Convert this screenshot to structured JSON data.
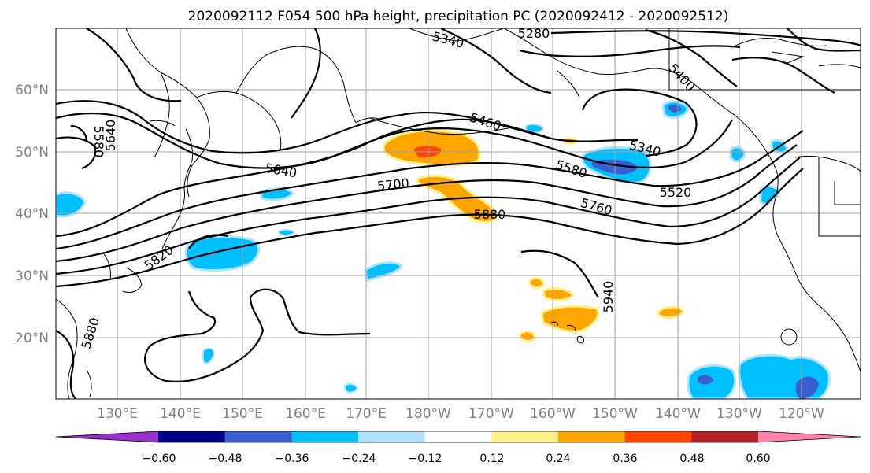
{
  "title": "2020092112 F054 500 hPa height, precipitation PC (2020092412 - 2020092512)",
  "map": {
    "lat_labels": [
      "60°N",
      "50°N",
      "40°N",
      "30°N",
      "20°N"
    ],
    "lon_labels": [
      "130°E",
      "140°E",
      "150°E",
      "160°E",
      "170°E",
      "180°W",
      "170°W",
      "160°W",
      "150°W",
      "140°W",
      "130°W",
      "120°W"
    ],
    "contour_labels": [
      "5280",
      "5340",
      "5400",
      "5460",
      "5340",
      "5580",
      "5640",
      "5640",
      "5580",
      "5700",
      "5520",
      "5760",
      "5880",
      "5820",
      "5940",
      "5880"
    ]
  },
  "colorbar": {
    "ticks": [
      "−0.60",
      "−0.48",
      "−0.36",
      "−0.24",
      "−0.12",
      "0.12",
      "0.24",
      "0.36",
      "0.48",
      "0.60"
    ],
    "colors": [
      "#9932cc",
      "#00008b",
      "#3a5fcd",
      "#00bfff",
      "#b0e2ff",
      "#ffffff",
      "#fff08a",
      "#ffa500",
      "#ff4500",
      "#b22222",
      "#ff82ab"
    ]
  }
}
